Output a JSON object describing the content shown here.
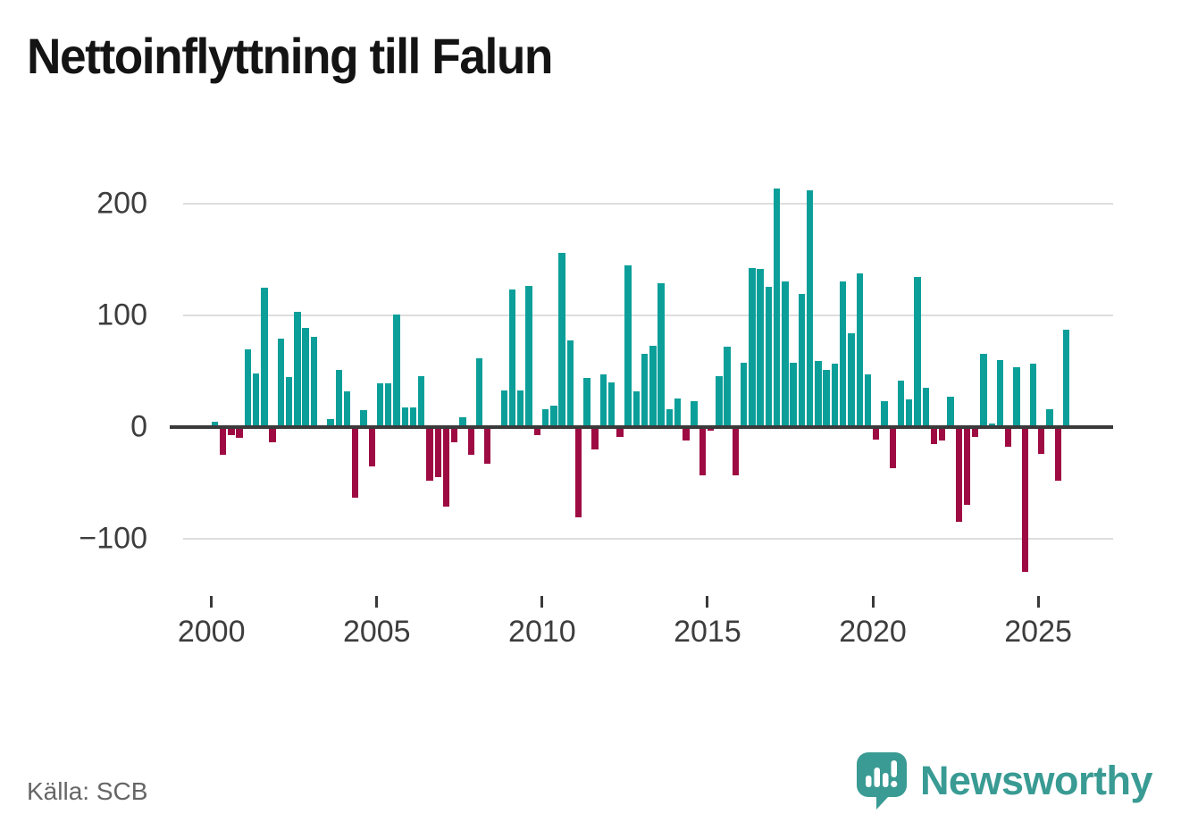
{
  "header": {
    "title": "Nettoinflyttning till Falun"
  },
  "footer": {
    "source_label": "Källa: SCB",
    "brand": "Newsworthy",
    "logo_icon": "speech-bubble-bar-chart-exclamation"
  },
  "colors": {
    "positive_bar": "#0c9f9a",
    "negative_bar": "#9e0b42",
    "grid": "#dddddd",
    "zero_line": "#3a3a3a",
    "axis_text": "#3d3d3d",
    "title_text": "#141414",
    "source_text": "#666666",
    "brand_teal": "#399b93"
  },
  "chart_data": {
    "type": "bar",
    "title": "Nettoinflyttning till Falun",
    "xlabel": "",
    "ylabel": "",
    "legend": "none",
    "grid": "horizontal",
    "x_start": "2000 Q1",
    "frequency": "quarterly",
    "n_points": 104,
    "ylim": [
      -155,
      228
    ],
    "y_ticks": [
      {
        "value": 200,
        "label": "200"
      },
      {
        "value": 100,
        "label": "100"
      },
      {
        "value": 0,
        "label": "0"
      },
      {
        "value": -100,
        "label": "−100"
      }
    ],
    "x_ticks": [
      {
        "year": 2000,
        "label": "2000"
      },
      {
        "year": 2005,
        "label": "2005"
      },
      {
        "year": 2010,
        "label": "2010"
      },
      {
        "year": 2015,
        "label": "2015"
      },
      {
        "year": 2020,
        "label": "2020"
      },
      {
        "year": 2025,
        "label": "2025"
      }
    ],
    "values": [
      5,
      -25,
      -7,
      -10,
      70,
      48,
      125,
      -14,
      79,
      45,
      103,
      89,
      81,
      0,
      7,
      51,
      32,
      -63,
      15,
      -35,
      39,
      39,
      101,
      18,
      18,
      46,
      -48,
      -45,
      -71,
      -14,
      9,
      -25,
      62,
      -33,
      0,
      33,
      123,
      33,
      127,
      -7,
      16,
      19,
      156,
      78,
      -81,
      44,
      -20,
      47,
      40,
      -9,
      145,
      32,
      66,
      73,
      129,
      16,
      26,
      -12,
      23,
      -43,
      -3,
      46,
      72,
      -43,
      58,
      143,
      142,
      126,
      214,
      131,
      58,
      119,
      212,
      59,
      51,
      57,
      131,
      84,
      138,
      47,
      -11,
      23,
      -37,
      42,
      25,
      135,
      35,
      -15,
      -12,
      27,
      -85,
      -70,
      -9,
      66,
      3,
      60,
      -18,
      54,
      -130,
      57,
      -24,
      16,
      -48,
      87
    ]
  }
}
